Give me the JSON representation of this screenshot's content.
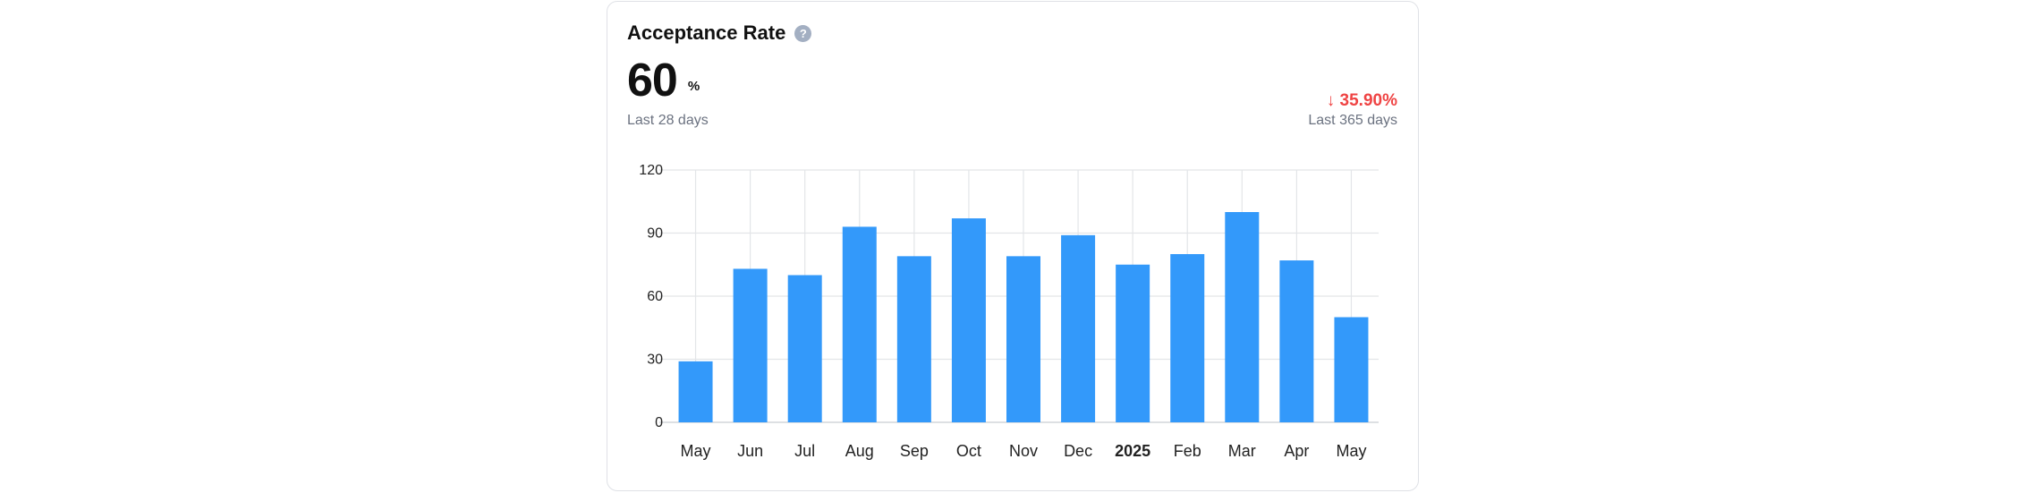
{
  "card": {
    "title": "Acceptance Rate",
    "help_icon": "question-circle-icon",
    "metric_value": "60",
    "metric_unit": "%",
    "metric_period": "Last 28 days",
    "change_arrow": "↓",
    "change_value": "35.90%",
    "change_period": "Last 365 days",
    "colors": {
      "bar": "#3399fa",
      "change_negative": "#ef4444",
      "grid": "#e3e5e8"
    }
  },
  "chart_data": {
    "type": "bar",
    "categories": [
      "May",
      "Jun",
      "Jul",
      "Aug",
      "Sep",
      "Oct",
      "Nov",
      "Dec",
      "2025",
      "Feb",
      "Mar",
      "Apr",
      "May"
    ],
    "bold_categories": [
      "2025"
    ],
    "values": [
      29,
      73,
      70,
      93,
      79,
      97,
      79,
      89,
      75,
      80,
      100,
      77,
      50
    ],
    "ylim": [
      0,
      120
    ],
    "yticks": [
      0,
      30,
      60,
      90,
      120
    ],
    "grid": true,
    "title": "",
    "xlabel": "",
    "ylabel": ""
  }
}
